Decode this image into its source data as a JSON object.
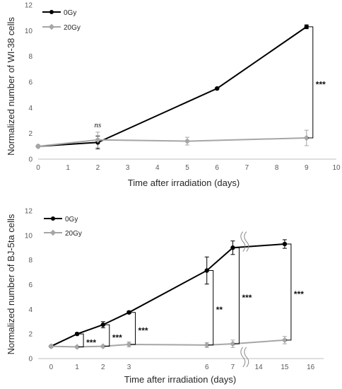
{
  "chart_data": [
    {
      "type": "line",
      "ylabel": "Normalized number of WI-38 cells",
      "xlabel": "Time after irradiation (days)",
      "xlim": [
        0,
        10
      ],
      "ylim": [
        0,
        12
      ],
      "x_ticks": [
        "0",
        "1",
        "2",
        "3",
        "4",
        "5",
        "6",
        "7",
        "8",
        "9",
        "10"
      ],
      "y_ticks": [
        "0",
        "2",
        "4",
        "6",
        "8",
        "10",
        "12"
      ],
      "grid": false,
      "legend": "top-left",
      "series": [
        {
          "name": "0Gy",
          "color": "#000000",
          "points": [
            {
              "x": 0,
              "y": 1.0,
              "err": 0.05
            },
            {
              "x": 2,
              "y": 1.3,
              "err": 0.5
            },
            {
              "x": 6,
              "y": 5.5,
              "err": 0.05
            },
            {
              "x": 9,
              "y": 10.3,
              "err": 0.15
            }
          ]
        },
        {
          "name": "20Gy",
          "color": "#a6a6a6",
          "points": [
            {
              "x": 0,
              "y": 1.0,
              "err": 0.05
            },
            {
              "x": 2,
              "y": 1.5,
              "err": 0.6
            },
            {
              "x": 5,
              "y": 1.4,
              "err": 0.3
            },
            {
              "x": 9,
              "y": 1.65,
              "err": 0.6
            }
          ]
        }
      ],
      "annotations": [
        {
          "text": "ns",
          "x": 2,
          "y_from": 1.5,
          "y_to": 1.5,
          "bracket": false
        },
        {
          "text": "***",
          "x": 9,
          "y_from": 1.65,
          "y_to": 10.3,
          "bracket": true
        }
      ]
    },
    {
      "type": "line",
      "ylabel": "Normalized number of BJ-5ta cells",
      "xlabel": "Time after irradiation (days)",
      "x_categories": [
        "0",
        "1",
        "2",
        "3",
        "",
        "",
        "6",
        "7",
        "14",
        "15",
        "16"
      ],
      "ylim": [
        0,
        12
      ],
      "y_ticks": [
        "0",
        "2",
        "4",
        "6",
        "8",
        "10",
        "12"
      ],
      "axis_break_between": [
        "7",
        "14"
      ],
      "grid": false,
      "legend": "top-left",
      "series": [
        {
          "name": "0Gy",
          "color": "#000000",
          "points": [
            {
              "x": "0",
              "y": 1.0,
              "err": 0.05
            },
            {
              "x": "1",
              "y": 2.0,
              "err": 0.1
            },
            {
              "x": "2",
              "y": 2.75,
              "err": 0.25
            },
            {
              "x": "3",
              "y": 3.75,
              "err": 0.1
            },
            {
              "x": "6",
              "y": 7.15,
              "err": 1.1
            },
            {
              "x": "7",
              "y": 9.0,
              "err": 0.55
            },
            {
              "x": "15",
              "y": 9.3,
              "err": 0.35
            }
          ]
        },
        {
          "name": "20Gy",
          "color": "#a6a6a6",
          "points": [
            {
              "x": "0",
              "y": 1.0,
              "err": 0.05
            },
            {
              "x": "1",
              "y": 0.95,
              "err": 0.08
            },
            {
              "x": "2",
              "y": 1.0,
              "err": 0.08
            },
            {
              "x": "3",
              "y": 1.15,
              "err": 0.2
            },
            {
              "x": "6",
              "y": 1.1,
              "err": 0.2
            },
            {
              "x": "7",
              "y": 1.2,
              "err": 0.3
            },
            {
              "x": "15",
              "y": 1.5,
              "err": 0.3
            }
          ]
        }
      ],
      "annotations": [
        {
          "text": "***",
          "x": "1",
          "y_from": 0.95,
          "y_to": 2.0,
          "bracket": true
        },
        {
          "text": "***",
          "x": "2",
          "y_from": 1.0,
          "y_to": 2.75,
          "bracket": true
        },
        {
          "text": "***",
          "x": "3",
          "y_from": 1.15,
          "y_to": 3.75,
          "bracket": true
        },
        {
          "text": "**",
          "x": "6",
          "y_from": 1.1,
          "y_to": 7.15,
          "bracket": true
        },
        {
          "text": "***",
          "x": "7",
          "y_from": 1.2,
          "y_to": 9.0,
          "bracket": true
        },
        {
          "text": "***",
          "x": "15",
          "y_from": 1.5,
          "y_to": 9.3,
          "bracket": true
        }
      ]
    }
  ]
}
